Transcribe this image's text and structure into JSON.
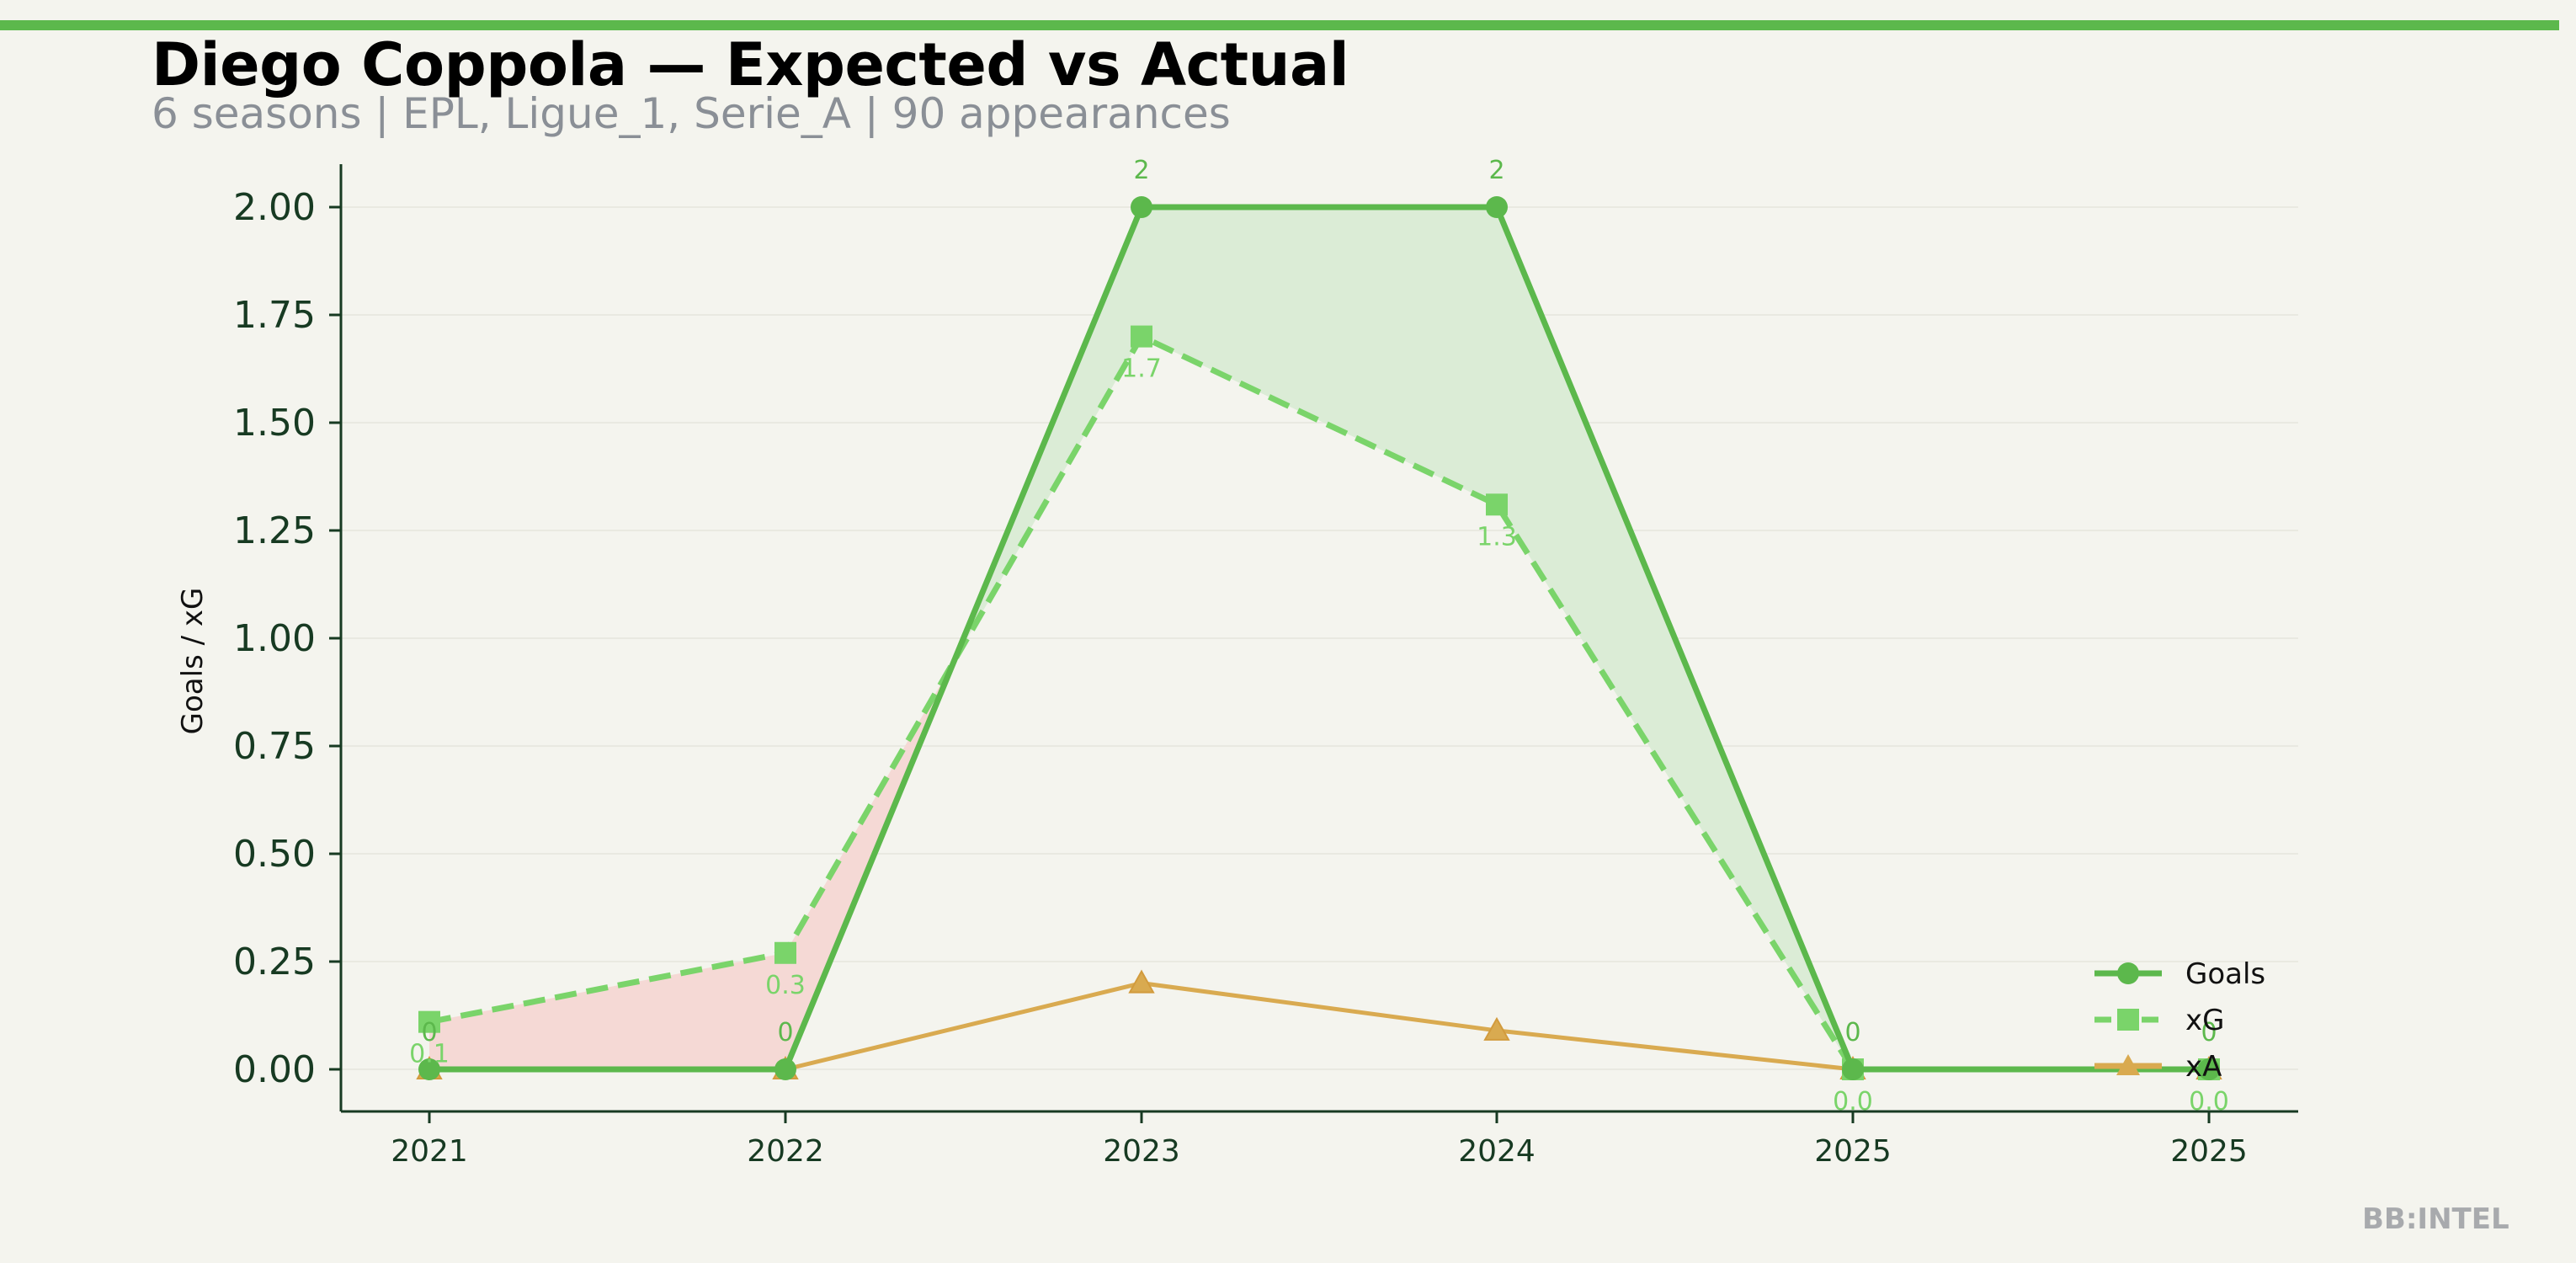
{
  "header": {
    "title": "Diego Coppola — Expected vs Actual",
    "subtitle": "6 seasons | EPL, Ligue_1, Serie_A | 90 appearances"
  },
  "watermark": "BB:INTEL",
  "colors": {
    "goals": "#5cb84c",
    "xg": "#7ad46a",
    "xa": "#d9aa50",
    "over_fill": "#dbecd6",
    "under_fill": "#f5d9d5",
    "axis": "#173a22",
    "background": "#f4f4ee"
  },
  "chart_data": {
    "type": "line",
    "categories": [
      "2021",
      "2022",
      "2023",
      "2024",
      "2025",
      "2025"
    ],
    "ylabel": "Goals / xG",
    "xlabel": "",
    "ylim": [
      -0.1,
      2.1
    ],
    "yticks": [
      "0.00",
      "0.25",
      "0.50",
      "0.75",
      "1.00",
      "1.25",
      "1.50",
      "1.75",
      "2.00"
    ],
    "grid": "horizontal, faint",
    "legend_position": "lower-right",
    "series": [
      {
        "name": "Goals",
        "marker": "circle",
        "style": "solid",
        "values": [
          0,
          0,
          2,
          2,
          0,
          0
        ],
        "labels": [
          "0",
          "0",
          "2",
          "2",
          "0",
          "0"
        ]
      },
      {
        "name": "xG",
        "marker": "square",
        "style": "dashed",
        "values": [
          0.11,
          0.27,
          1.7,
          1.31,
          0.0,
          0.0
        ],
        "labels": [
          "0.1",
          "0.3",
          "1.7",
          "1.3",
          "0.0",
          "0.0"
        ]
      },
      {
        "name": "xA",
        "marker": "triangle",
        "style": "solid",
        "values": [
          0,
          0,
          0.2,
          0.09,
          0,
          0
        ]
      }
    ]
  }
}
